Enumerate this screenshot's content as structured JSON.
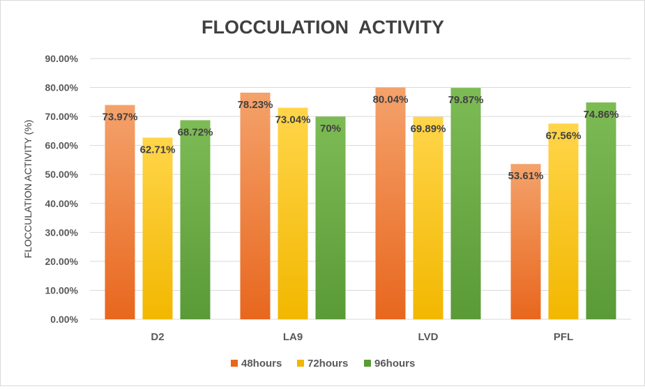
{
  "chart_data": {
    "type": "bar",
    "title": "FLOCCULATION  ACTIVITY",
    "xlabel": "",
    "ylabel": "FLOCCULATION ACTIVITY (%)",
    "categories": [
      "D2",
      "LA9",
      "LVD",
      "PFL"
    ],
    "series": [
      {
        "name": "48hours",
        "values": [
          73.97,
          78.23,
          80.04,
          53.61
        ],
        "labels": [
          "73.97%",
          "78.23%",
          "80.04%",
          "53.61%"
        ],
        "color_top": "#f4a26b",
        "color_bottom": "#e8671e"
      },
      {
        "name": "72hours",
        "values": [
          62.71,
          73.04,
          69.89,
          67.56
        ],
        "labels": [
          "62.71%",
          "73.04%",
          "69.89%",
          "67.56%"
        ],
        "color_top": "#ffd54a",
        "color_bottom": "#f2b700"
      },
      {
        "name": "96hours",
        "values": [
          68.72,
          70.0,
          79.87,
          74.86
        ],
        "labels": [
          "68.72%",
          "70%",
          "79.87%",
          "74.86%"
        ],
        "color_top": "#7dbb55",
        "color_bottom": "#5a9a37"
      }
    ],
    "ylim": [
      0,
      90
    ],
    "yticks": [
      "0.00%",
      "10.00%",
      "20.00%",
      "30.00%",
      "40.00%",
      "50.00%",
      "60.00%",
      "70.00%",
      "80.00%",
      "90.00%"
    ],
    "grid": true,
    "legend_position": "bottom",
    "colors": {
      "grid": "#d9d9d9",
      "text": "#595959",
      "title": "#404040",
      "label": "#404040"
    }
  }
}
